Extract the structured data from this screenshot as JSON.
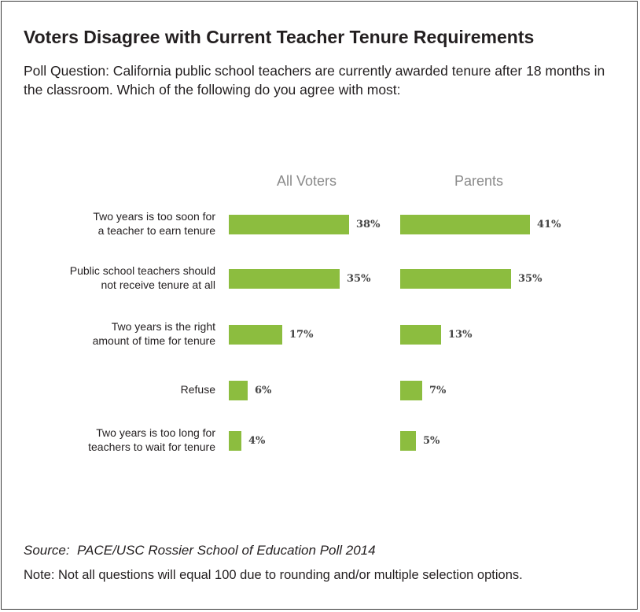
{
  "title": "Voters Disagree with Current Teacher Tenure Requirements",
  "subtitle": "Poll Question: California public school teachers are currently awarded tenure after 18 months in the classroom. Which of the following do you agree with most:",
  "source": "Source:  PACE/USC Rossier School of Education Poll 2014",
  "note": "Note: Not all questions will equal 100 due to rounding and/or multiple selection options.",
  "colors": {
    "bar": "#8cbd3f",
    "group_label": "#8a8a8a"
  },
  "chart_data": {
    "type": "bar",
    "orientation": "horizontal",
    "categories": [
      [
        "Two years is too soon for",
        "a teacher to earn tenure"
      ],
      [
        "Public school teachers should",
        "not receive tenure at all"
      ],
      [
        "Two years is the right",
        "amount of time for tenure"
      ],
      [
        "Refuse"
      ],
      [
        "Two years is too long for",
        "teachers to wait for tenure"
      ]
    ],
    "series": [
      {
        "name": "All Voters",
        "values": [
          38,
          35,
          17,
          6,
          4
        ],
        "labels": [
          "38%",
          "35%",
          "17%",
          "6%",
          "4%"
        ]
      },
      {
        "name": "Parents",
        "values": [
          41,
          35,
          13,
          7,
          5
        ],
        "labels": [
          "41%",
          "35%",
          "13%",
          "7%",
          "5%"
        ]
      }
    ],
    "unit": "%",
    "grid": false
  }
}
